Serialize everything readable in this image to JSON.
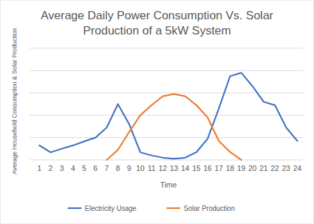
{
  "chart_data": {
    "type": "line",
    "title": "Average Daily Power Consumption Vs. Solar Production of a 5kW System",
    "x_label": "Time",
    "y_label": "Average Household Consumption & Solar Production",
    "categories": [
      "1",
      "2",
      "3",
      "4",
      "5",
      "6",
      "7",
      "8",
      "9",
      "10",
      "11",
      "12",
      "13",
      "14",
      "15",
      "16",
      "17",
      "18",
      "19",
      "20",
      "21",
      "22",
      "23",
      "24"
    ],
    "series": [
      {
        "name": "Electricity Usage",
        "color": "#4472c4",
        "line_style": "solid",
        "values": [
          0.65,
          0.34,
          0.5,
          0.65,
          0.83,
          1.0,
          1.45,
          2.5,
          1.6,
          0.34,
          0.2,
          0.1,
          0.05,
          0.1,
          0.35,
          0.95,
          2.3,
          3.75,
          3.9,
          3.3,
          2.6,
          2.45,
          1.45,
          0.85
        ]
      },
      {
        "name": "Solar Production",
        "color": "#ed7d31",
        "line_style": "solid",
        "values": [
          null,
          null,
          null,
          null,
          null,
          null,
          0,
          0.45,
          1.25,
          2.0,
          2.45,
          2.85,
          2.95,
          2.85,
          2.45,
          1.9,
          0.85,
          0.35,
          0,
          null,
          null,
          null,
          null,
          null
        ]
      }
    ],
    "ylim": [
      0,
      5
    ],
    "yticks": [
      0,
      1,
      2,
      3,
      4,
      5
    ],
    "grid": true,
    "legend": "bottom",
    "tick_labels": "x"
  }
}
